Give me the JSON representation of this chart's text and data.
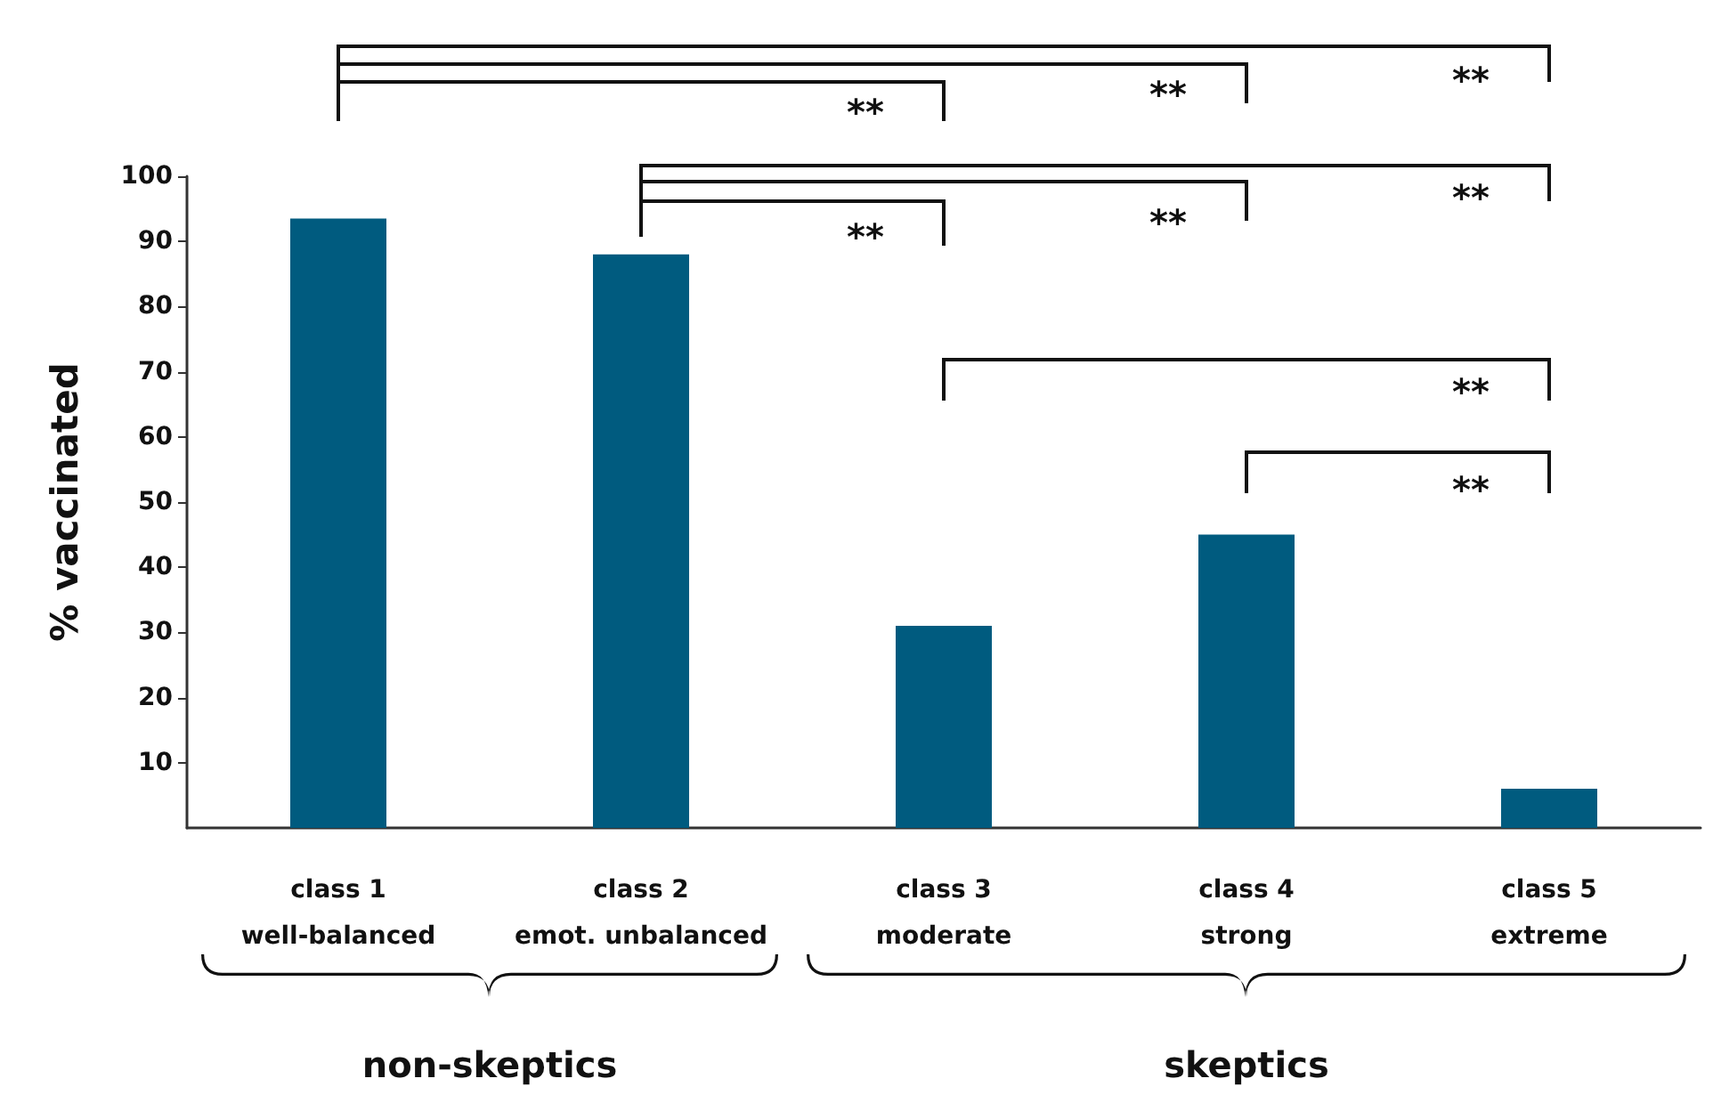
{
  "chart_data": {
    "type": "bar",
    "ylabel": "% vaccinated",
    "categories": [
      "class 1\nwell-balanced",
      "class 2\nemot. unbalanced",
      "class 3\nmoderate",
      "class 4\nstrong",
      "class 5\nextreme"
    ],
    "values": [
      93.5,
      88,
      31,
      45,
      6
    ],
    "color": "#005b7f",
    "ylim": [
      0,
      100
    ],
    "yticks": [
      10,
      20,
      30,
      40,
      50,
      60,
      70,
      80,
      90,
      100
    ],
    "grid": false,
    "annotations": [
      "**",
      "**",
      "**",
      "**",
      "**",
      "**",
      "**",
      "**",
      "non-skeptics",
      "skeptics"
    ]
  }
}
